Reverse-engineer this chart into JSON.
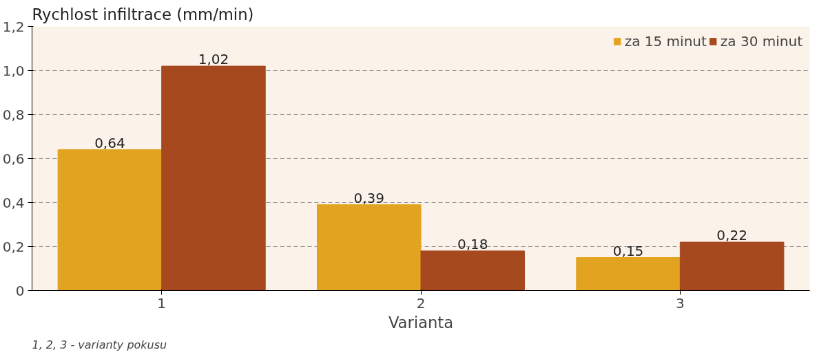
{
  "chart_data": {
    "type": "bar",
    "ylabel": "Rychlost infiltrace (mm/min)",
    "xlabel": "Varianta",
    "annotations": [
      "1, 2, 3 - varianty pokusu"
    ],
    "categories": [
      "1",
      "2",
      "3"
    ],
    "series": [
      {
        "name": "za 15 minut",
        "color": "#e2a321",
        "values": [
          0.64,
          0.39,
          0.15
        ],
        "value_labels": [
          "0,64",
          "0,39",
          "0,15"
        ]
      },
      {
        "name": "za 30 minut",
        "color": "#a6491f",
        "values": [
          1.02,
          0.18,
          0.22
        ],
        "value_labels": [
          "1,02",
          "0,18",
          "0,22"
        ]
      }
    ],
    "ylim": [
      0,
      1.2
    ],
    "yticks": [
      {
        "value": 0,
        "label": "0"
      },
      {
        "value": 0.2,
        "label": "0,2"
      },
      {
        "value": 0.4,
        "label": "0,4"
      },
      {
        "value": 0.6,
        "label": "0,6"
      },
      {
        "value": 0.8,
        "label": "0,8"
      },
      {
        "value": 1.0,
        "label": "1,0"
      },
      {
        "value": 1.2,
        "label": "1,2"
      }
    ],
    "grid": "y",
    "legend": "top right"
  }
}
